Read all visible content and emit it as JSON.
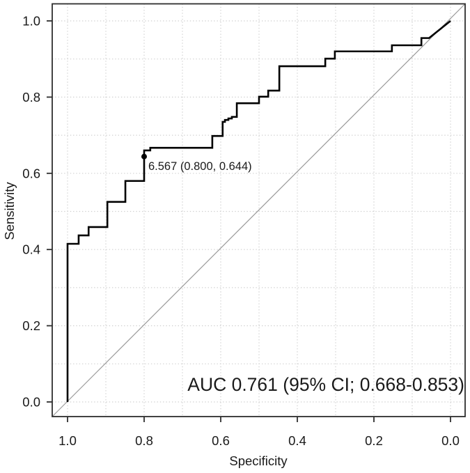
{
  "figure": {
    "annotation_auc": "AUC 0.761 (95% CI; 0.668-0.853)",
    "cutoff_label": "6.567 (0.800, 0.644)"
  },
  "chart_data": {
    "type": "line",
    "subtype": "roc-curve",
    "title": "",
    "xlabel": "Specificity",
    "ylabel": "Sensitivity",
    "x_axis_reversed": true,
    "xlim": [
      1.0,
      0.0
    ],
    "ylim": [
      0.0,
      1.0
    ],
    "x_tick_values": [
      1.0,
      0.8,
      0.6,
      0.4,
      0.2,
      0.0
    ],
    "x_tick_labels": [
      "1.0",
      "0.8",
      "0.6",
      "0.4",
      "0.2",
      "0.0"
    ],
    "y_tick_values": [
      0.0,
      0.2,
      0.4,
      0.6,
      0.8,
      1.0
    ],
    "y_tick_labels": [
      "0.0",
      "0.2",
      "0.4",
      "0.6",
      "0.8",
      "1.0"
    ],
    "grid": "on",
    "grid_style": "dotted",
    "grid_step": 0.1,
    "legend_position": "none",
    "auc": 0.761,
    "auc_ci_95": [
      0.668,
      0.853
    ],
    "series": [
      {
        "name": "ROC curve",
        "style": "step",
        "points": [
          [
            1.0,
            0.0
          ],
          [
            1.0,
            0.415
          ],
          [
            0.971,
            0.415
          ],
          [
            0.971,
            0.437
          ],
          [
            0.945,
            0.437
          ],
          [
            0.945,
            0.459
          ],
          [
            0.896,
            0.459
          ],
          [
            0.896,
            0.525
          ],
          [
            0.849,
            0.525
          ],
          [
            0.849,
            0.58
          ],
          [
            0.8,
            0.58
          ],
          [
            0.8,
            0.644
          ],
          [
            0.8,
            0.66
          ],
          [
            0.784,
            0.66
          ],
          [
            0.784,
            0.667
          ],
          [
            0.622,
            0.667
          ],
          [
            0.622,
            0.698
          ],
          [
            0.595,
            0.698
          ],
          [
            0.595,
            0.735
          ],
          [
            0.589,
            0.735
          ],
          [
            0.589,
            0.74
          ],
          [
            0.58,
            0.74
          ],
          [
            0.58,
            0.744
          ],
          [
            0.571,
            0.744
          ],
          [
            0.571,
            0.748
          ],
          [
            0.558,
            0.748
          ],
          [
            0.558,
            0.784
          ],
          [
            0.5,
            0.784
          ],
          [
            0.5,
            0.801
          ],
          [
            0.476,
            0.801
          ],
          [
            0.476,
            0.817
          ],
          [
            0.447,
            0.817
          ],
          [
            0.447,
            0.881
          ],
          [
            0.327,
            0.881
          ],
          [
            0.327,
            0.901
          ],
          [
            0.302,
            0.901
          ],
          [
            0.302,
            0.92
          ],
          [
            0.153,
            0.92
          ],
          [
            0.153,
            0.936
          ],
          [
            0.076,
            0.936
          ],
          [
            0.076,
            0.955
          ],
          [
            0.056,
            0.955
          ],
          [
            0.0,
            1.0
          ]
        ]
      },
      {
        "name": "reference diagonal",
        "style": "straight",
        "points": [
          [
            1.0,
            0.0
          ],
          [
            0.0,
            1.0
          ]
        ]
      }
    ],
    "marked_point": {
      "cutoff": "6.567",
      "specificity": 0.8,
      "sensitivity": 0.644,
      "label": "6.567 (0.800, 0.644)"
    },
    "annotations": [
      {
        "text": "AUC 0.761 (95% CI; 0.668-0.853)",
        "position": "bottom-right"
      }
    ],
    "colors": {
      "curve": "#000000",
      "diagonal": "#9a9a9a",
      "grid": "#d0d0d0",
      "axis": "#2e2e2e",
      "text": "#1a1a1a",
      "background": "#ffffff"
    }
  }
}
